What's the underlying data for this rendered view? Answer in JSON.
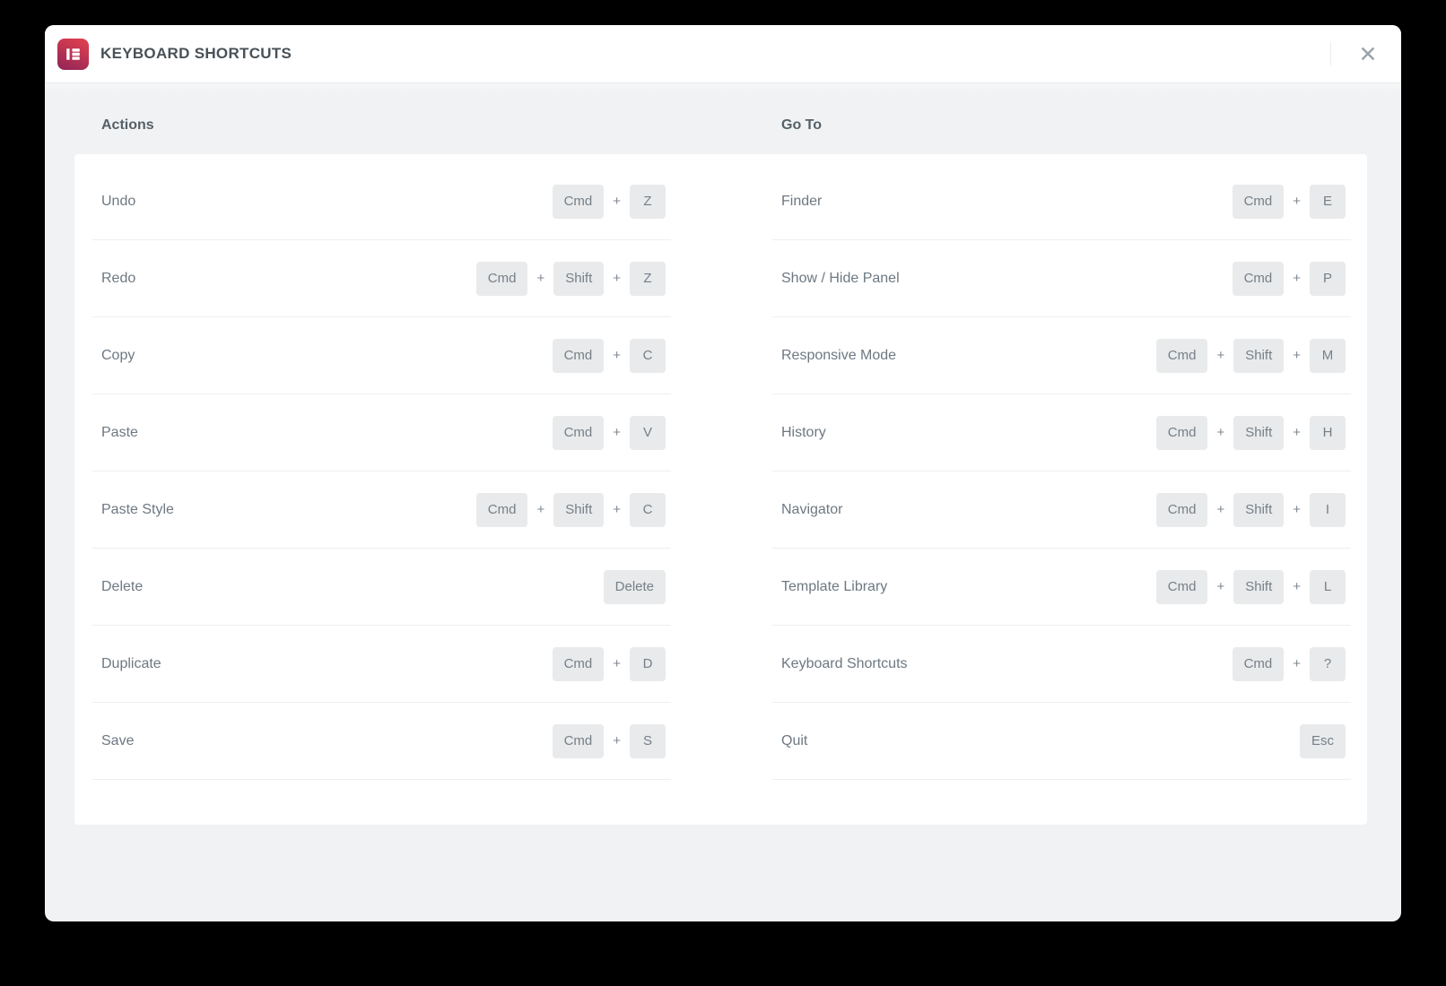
{
  "dialog": {
    "title": "KEYBOARD SHORTCUTS",
    "logo_icon": "elementor-logo",
    "close_icon": "✕"
  },
  "separators": {
    "plus": "+"
  },
  "columns": [
    {
      "heading": "Actions",
      "rows": [
        {
          "label": "Undo",
          "keys": [
            "Cmd",
            "Z"
          ]
        },
        {
          "label": "Redo",
          "keys": [
            "Cmd",
            "Shift",
            "Z"
          ]
        },
        {
          "label": "Copy",
          "keys": [
            "Cmd",
            "C"
          ]
        },
        {
          "label": "Paste",
          "keys": [
            "Cmd",
            "V"
          ]
        },
        {
          "label": "Paste Style",
          "keys": [
            "Cmd",
            "Shift",
            "C"
          ]
        },
        {
          "label": "Delete",
          "keys": [
            "Delete"
          ]
        },
        {
          "label": "Duplicate",
          "keys": [
            "Cmd",
            "D"
          ]
        },
        {
          "label": "Save",
          "keys": [
            "Cmd",
            "S"
          ]
        }
      ]
    },
    {
      "heading": "Go To",
      "rows": [
        {
          "label": "Finder",
          "keys": [
            "Cmd",
            "E"
          ]
        },
        {
          "label": "Show / Hide Panel",
          "keys": [
            "Cmd",
            "P"
          ]
        },
        {
          "label": "Responsive Mode",
          "keys": [
            "Cmd",
            "Shift",
            "M"
          ]
        },
        {
          "label": "History",
          "keys": [
            "Cmd",
            "Shift",
            "H"
          ]
        },
        {
          "label": "Navigator",
          "keys": [
            "Cmd",
            "Shift",
            "I"
          ]
        },
        {
          "label": "Template Library",
          "keys": [
            "Cmd",
            "Shift",
            "L"
          ]
        },
        {
          "label": "Keyboard Shortcuts",
          "keys": [
            "Cmd",
            "?"
          ]
        },
        {
          "label": "Quit",
          "keys": [
            "Esc"
          ]
        }
      ]
    }
  ],
  "colors": {
    "page_background": "#000000",
    "dialog_background": "#f1f2f3",
    "header_background": "#ffffff",
    "panel_background": "#ffffff",
    "accent_gradient_start": "#e0404e",
    "accent_gradient_end": "#8f2458",
    "key_background": "#e8eaeb",
    "key_text": "#767f88",
    "label_text": "#6d7882",
    "heading_text": "#556068",
    "title_text": "#495157",
    "divider": "#edeff0"
  }
}
